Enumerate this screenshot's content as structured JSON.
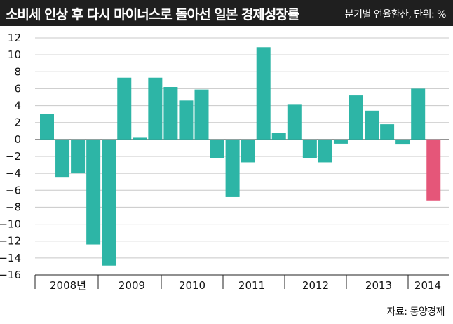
{
  "header": {
    "title": "소비세 인상 후 다시 마이너스로 돌아선 일본 경제성장률",
    "unit_note": "분기별 연율환산, 단위: %"
  },
  "source": "자료: 동양경제",
  "chart_data": {
    "type": "bar",
    "title": "소비세 인상 후 다시 마이너스로 돌아선 일본 경제성장률",
    "ylabel": "",
    "xlabel": "",
    "ylim": [
      -16,
      12
    ],
    "yticks": [
      12,
      10,
      8,
      6,
      4,
      2,
      0,
      -2,
      -4,
      -6,
      -8,
      -10,
      -12,
      -14,
      -16
    ],
    "grid": true,
    "year_labels": [
      "2008년",
      "2009",
      "2010",
      "2011",
      "2012",
      "2013",
      "2014"
    ],
    "values": [
      3.0,
      -4.5,
      -4.0,
      -12.4,
      -14.9,
      7.3,
      0.2,
      7.3,
      6.2,
      4.6,
      5.9,
      -2.2,
      -6.8,
      -2.7,
      10.9,
      0.8,
      4.1,
      -2.2,
      -2.7,
      -0.5,
      5.2,
      3.4,
      1.8,
      -0.6,
      6.0,
      -7.2
    ],
    "bar_color": "#2db5a6",
    "highlight_color": "#e55679",
    "highlight_index": 25
  }
}
